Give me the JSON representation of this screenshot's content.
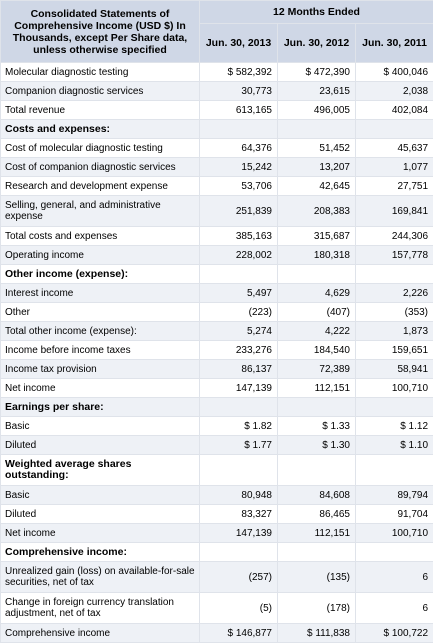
{
  "header": {
    "title": "Consolidated Statements of Comprehensive Income (USD $) In Thousands, except Per Share data, unless otherwise specified",
    "period": "12 Months Ended",
    "columns": [
      "Jun. 30, 2013",
      "Jun. 30, 2012",
      "Jun. 30, 2011"
    ]
  },
  "rows": [
    {
      "label": "Molecular diagnostic testing",
      "values": [
        "$ 582,392",
        "$ 472,390",
        "$ 400,046"
      ]
    },
    {
      "label": "Companion diagnostic services",
      "values": [
        "30,773",
        "23,615",
        "2,038"
      ]
    },
    {
      "label": "Total revenue",
      "values": [
        "613,165",
        "496,005",
        "402,084"
      ],
      "subtotal": true
    },
    {
      "label": "Costs and expenses:",
      "section": true
    },
    {
      "label": "Cost of molecular diagnostic testing",
      "values": [
        "64,376",
        "51,452",
        "45,637"
      ]
    },
    {
      "label": "Cost of companion diagnostic services",
      "values": [
        "15,242",
        "13,207",
        "1,077"
      ]
    },
    {
      "label": "Research and development expense",
      "values": [
        "53,706",
        "42,645",
        "27,751"
      ]
    },
    {
      "label": "Selling, general, and administrative expense",
      "values": [
        "251,839",
        "208,383",
        "169,841"
      ],
      "tall": true
    },
    {
      "label": "Total costs and expenses",
      "values": [
        "385,163",
        "315,687",
        "244,306"
      ],
      "subtotal": true
    },
    {
      "label": "Operating income",
      "values": [
        "228,002",
        "180,318",
        "157,778"
      ],
      "subtotal": true
    },
    {
      "label": "Other income (expense):",
      "section": true
    },
    {
      "label": "Interest income",
      "values": [
        "5,497",
        "4,629",
        "2,226"
      ]
    },
    {
      "label": "Other",
      "values": [
        "(223)",
        "(407)",
        "(353)"
      ]
    },
    {
      "label": "Total other income (expense):",
      "values": [
        "5,274",
        "4,222",
        "1,873"
      ],
      "subtotal": true
    },
    {
      "label": "Income before income taxes",
      "values": [
        "233,276",
        "184,540",
        "159,651"
      ],
      "subtotal": true
    },
    {
      "label": "Income tax provision",
      "values": [
        "86,137",
        "72,389",
        "58,941"
      ]
    },
    {
      "label": "Net income",
      "values": [
        "147,139",
        "112,151",
        "100,710"
      ],
      "subtotal": true
    },
    {
      "label": "Earnings per share:",
      "section": true
    },
    {
      "label": "Basic",
      "values": [
        "$ 1.82",
        "$ 1.33",
        "$ 1.12"
      ]
    },
    {
      "label": "Diluted",
      "values": [
        "$ 1.77",
        "$ 1.30",
        "$ 1.10"
      ]
    },
    {
      "label": "Weighted average shares outstanding:",
      "section": true,
      "tall": true
    },
    {
      "label": "Basic",
      "values": [
        "80,948",
        "84,608",
        "89,794"
      ]
    },
    {
      "label": "Diluted",
      "values": [
        "83,327",
        "86,465",
        "91,704"
      ]
    },
    {
      "label": "Net income",
      "values": [
        "147,139",
        "112,151",
        "100,710"
      ]
    },
    {
      "label": "Comprehensive income:",
      "section": true
    },
    {
      "label": "Unrealized gain (loss) on available-for-sale securities, net of tax",
      "values": [
        "(257)",
        "(135)",
        "6"
      ],
      "tall": true
    },
    {
      "label": "Change in foreign currency translation adjustment, net of tax",
      "values": [
        "(5)",
        "(178)",
        "6"
      ],
      "tall": true
    },
    {
      "label": "Comprehensive income",
      "values": [
        "$ 146,877",
        "$ 111,838",
        "$ 100,722"
      ],
      "subtotal": true
    }
  ]
}
